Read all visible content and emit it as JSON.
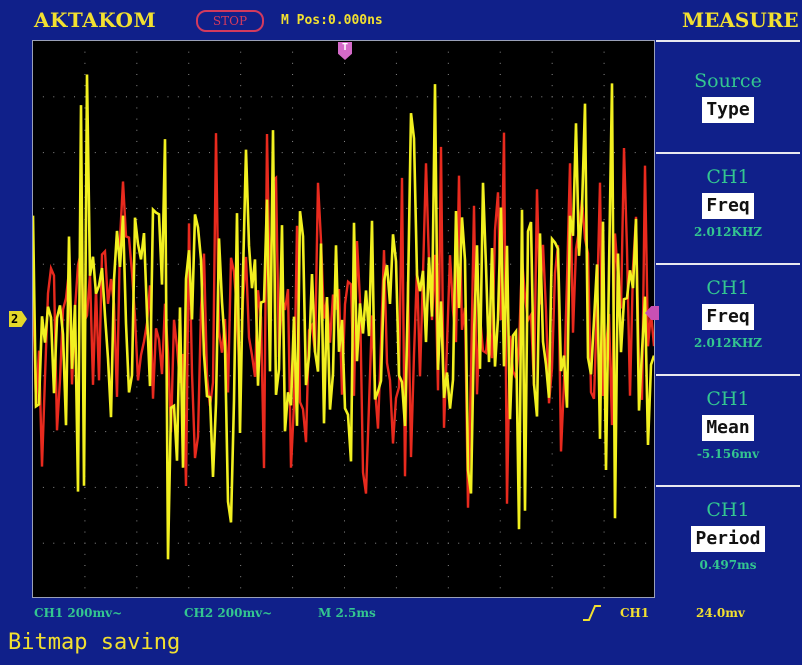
{
  "header": {
    "brand": "AKTAKOM",
    "run_status": "STOP",
    "m_pos": "M Pos:0.000ns",
    "menu_title": "MEASURE"
  },
  "markers": {
    "trigger_top": "T",
    "channel2": "2"
  },
  "menu": {
    "items": [
      {
        "head": "Source",
        "box": "Type",
        "value": ""
      },
      {
        "head": "CH1",
        "box": "Freq",
        "value": "2.012KHZ"
      },
      {
        "head": "CH1",
        "box": "Freq",
        "value": "2.012KHZ"
      },
      {
        "head": "CH1",
        "box": "Mean",
        "value": "-5.156mv"
      },
      {
        "head": "CH1",
        "box": "Period",
        "value": "0.497ms"
      }
    ]
  },
  "statusbar": {
    "ch1": "CH1  200mv~",
    "ch2": "CH2  200mv~",
    "timebase": "M 2.5ms",
    "trigger_source": "CH1",
    "trigger_level": "24.0mv"
  },
  "message": "Bitmap saving",
  "colors": {
    "background": "#10208a",
    "ch1": "#e82a1e",
    "ch2": "#f2f020",
    "text_yellow": "#f2e030",
    "text_green": "#33c690",
    "stop_badge": "#d23a5e"
  }
}
